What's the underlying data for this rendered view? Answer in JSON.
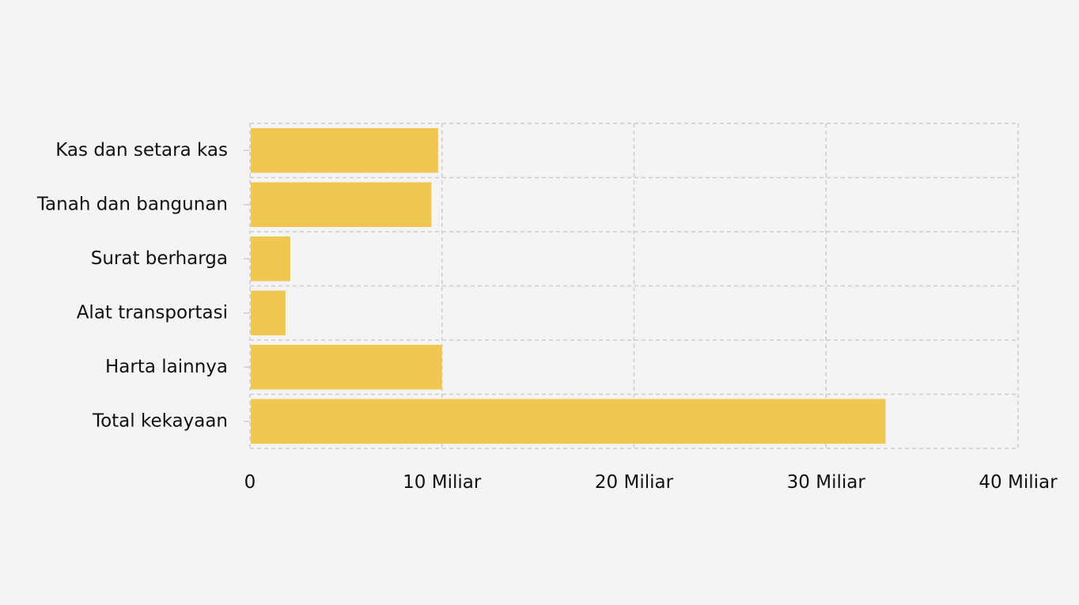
{
  "colors": {
    "background": "#f4f4f4",
    "bar": "#f0c851",
    "grid": "#cccccc",
    "text": "#111111"
  },
  "chart_data": {
    "type": "bar",
    "orientation": "horizontal",
    "categories": [
      "Kas dan setara kas",
      "Tanah dan bangunan",
      "Surat berharga",
      "Alat transportasi",
      "Harta lainnya",
      "Total kekayaan"
    ],
    "values": [
      9800000000,
      9450000000,
      2100000000,
      1850000000,
      10000000000,
      33100000000
    ],
    "xlim": [
      0,
      40000000000
    ],
    "x_ticks": [
      0,
      10000000000,
      20000000000,
      30000000000,
      40000000000
    ],
    "x_tick_labels": [
      "0",
      "10 Miliar",
      "20 Miliar",
      "30 Miliar",
      "40 Miliar"
    ],
    "grid": true,
    "grid_style": "dashed",
    "legend": false
  }
}
